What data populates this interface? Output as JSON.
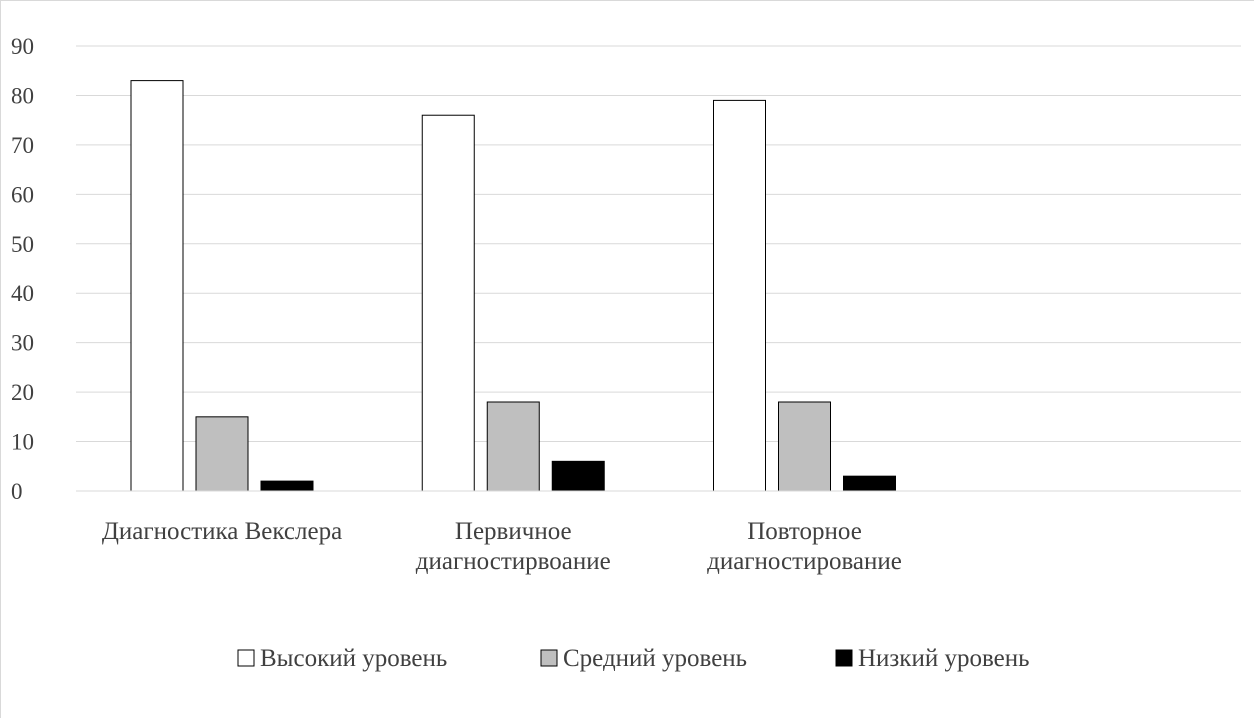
{
  "chart_data": {
    "type": "bar",
    "title": "",
    "xlabel": "",
    "ylabel": "",
    "ylim": [
      0,
      90
    ],
    "yticks": [
      0,
      10,
      20,
      30,
      40,
      50,
      60,
      70,
      80,
      90
    ],
    "grid": true,
    "legend_position": "bottom",
    "categories": [
      [
        "Диагностика Векслера"
      ],
      [
        "Первичное",
        "диагностирвоание"
      ],
      [
        "Повторное",
        "диагностирование"
      ],
      []
    ],
    "series": [
      {
        "name": "Высокий уровень",
        "color": "#ffffff",
        "values": [
          83,
          76,
          79,
          null
        ]
      },
      {
        "name": "Средний уровень",
        "color": "#bfbfbf",
        "values": [
          15,
          18,
          18,
          null
        ]
      },
      {
        "name": "Низкий уровень",
        "color": "#000000",
        "values": [
          2,
          6,
          3,
          null
        ]
      }
    ]
  }
}
